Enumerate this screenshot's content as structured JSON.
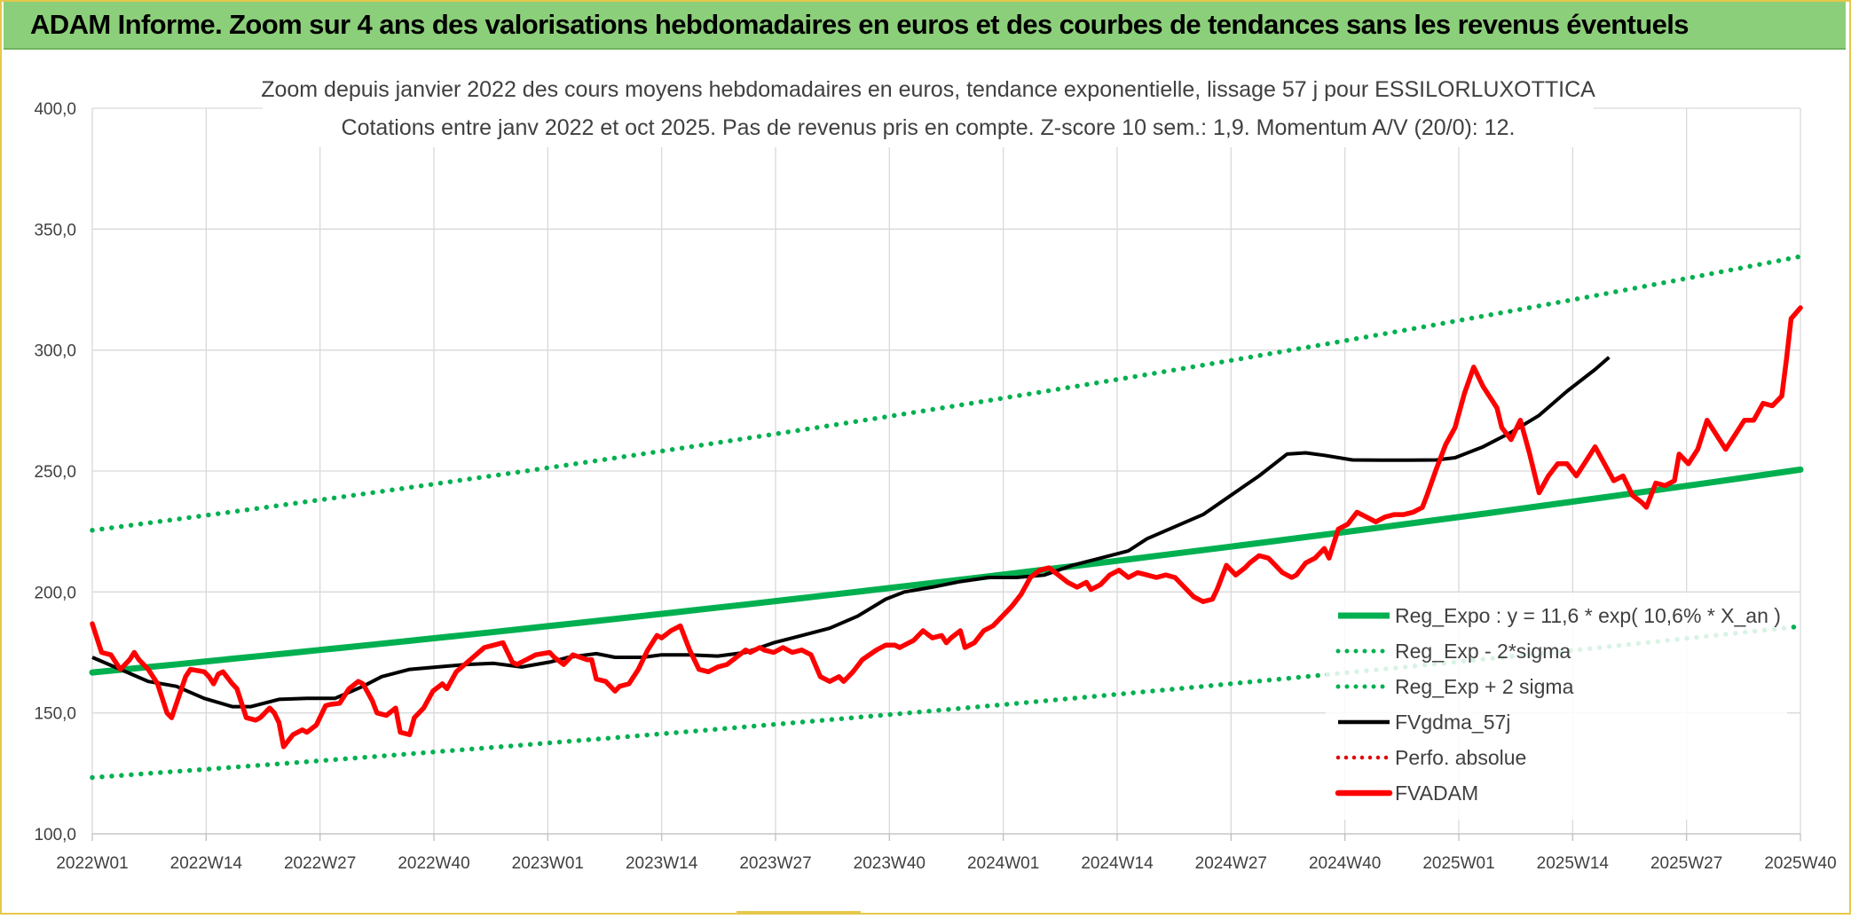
{
  "header": {
    "title": "ADAM Informe. Zoom sur 4 ans des valorisations hebdomadaires en euros et des courbes de tendances sans les revenus éventuels"
  },
  "colors": {
    "header_bg": "#8ccf7a",
    "reg_expo": "#00b050",
    "fvgdma": "#000000",
    "perfo": "#e00000",
    "fvadam": "#ff0000",
    "grid": "#d9d9d9"
  },
  "chart_data": {
    "type": "line",
    "title": "Zoom depuis janvier 2022 des cours moyens hebdomadaires en euros, tendance exponentielle, lissage 57 j pour ESSILORLUXOTTICA",
    "subtitle": "Cotations entre janv 2022 et oct 2025. Pas de revenus pris en compte. Z-score 10 sem.: 1,9. Momentum A/V (20/0): 12.",
    "ylim": [
      100,
      400
    ],
    "yticks": [
      "100,0",
      "150,0",
      "200,0",
      "250,0",
      "300,0",
      "350,0",
      "400,0"
    ],
    "ytick_values": [
      100,
      150,
      200,
      250,
      300,
      350,
      400
    ],
    "x_count": 198,
    "xticks": [
      "2022W01",
      "2022W14",
      "2022W27",
      "2022W40",
      "2023W01",
      "2023W14",
      "2023W27",
      "2023W40",
      "2024W01",
      "2024W14",
      "2024W27",
      "2024W40",
      "2025W01",
      "2025W14",
      "2025W27",
      "2025W40"
    ],
    "grid": true,
    "legend_position": "bottom-right",
    "series": [
      {
        "name": "Reg_Expo : y = 11,6 * exp( 10,6% *  X_an )",
        "style": "solid-thick",
        "color": "#00b050",
        "start": 166.7,
        "end": 250.6
      },
      {
        "name": "Reg_Exp - 2*sigma",
        "style": "dotted",
        "color": "#00b050",
        "start": 123.3,
        "end": 185.8
      },
      {
        "name": "Reg_Exp + 2 sigma",
        "style": "dotted",
        "color": "#00b050",
        "start": 225.5,
        "end": 338.7
      },
      {
        "name": "FVgdma_57j",
        "style": "solid",
        "color": "#000000",
        "points": [
          [
            0,
            173
          ],
          [
            6,
            168
          ],
          [
            12,
            163
          ],
          [
            18,
            161
          ],
          [
            24,
            156
          ],
          [
            30,
            152.6
          ],
          [
            34,
            152.6
          ],
          [
            40,
            155.6
          ],
          [
            46,
            156
          ],
          [
            52,
            156
          ],
          [
            58,
            161
          ],
          [
            62,
            165
          ],
          [
            68,
            168
          ],
          [
            74,
            169
          ],
          [
            80,
            170
          ],
          [
            86,
            170.5
          ],
          [
            92,
            169
          ],
          [
            98,
            171
          ],
          [
            102,
            173
          ],
          [
            108,
            174.5
          ],
          [
            112,
            173
          ],
          [
            118,
            173
          ],
          [
            122,
            174
          ],
          [
            128,
            174
          ],
          [
            134,
            173.5
          ],
          [
            140,
            175
          ],
          [
            146,
            179
          ],
          [
            152,
            182
          ],
          [
            158,
            185
          ],
          [
            164,
            190
          ],
          [
            170,
            197
          ],
          [
            174,
            200
          ],
          [
            180,
            202
          ],
          [
            186,
            204.3
          ],
          [
            192,
            206
          ],
          [
            198,
            206
          ],
          [
            204,
            207
          ],
          [
            210,
            211
          ],
          [
            216,
            214
          ],
          [
            222,
            217
          ],
          [
            226,
            222
          ],
          [
            232,
            227
          ],
          [
            238,
            232
          ],
          [
            244,
            240
          ],
          [
            250,
            248
          ],
          [
            256,
            257
          ],
          [
            260,
            257.5
          ],
          [
            264,
            256.5
          ],
          [
            270,
            254.6
          ],
          [
            276,
            254.5
          ],
          [
            282,
            254.5
          ],
          [
            288,
            254.6
          ],
          [
            292,
            255.5
          ],
          [
            298,
            260
          ],
          [
            304,
            266
          ],
          [
            310,
            273
          ],
          [
            316,
            283
          ],
          [
            322,
            292
          ],
          [
            325,
            297
          ]
        ]
      },
      {
        "name": "Perfo. absolue",
        "style": "dotted",
        "color": "#e00000"
      },
      {
        "name": "FVADAM",
        "style": "solid-thick",
        "color": "#ff0000",
        "points": [
          [
            0,
            186.9
          ],
          [
            2,
            175
          ],
          [
            4,
            174
          ],
          [
            6,
            168
          ],
          [
            8,
            172
          ],
          [
            9,
            175
          ],
          [
            10,
            172
          ],
          [
            12,
            168
          ],
          [
            14,
            162
          ],
          [
            16,
            150
          ],
          [
            17,
            148
          ],
          [
            20,
            165
          ],
          [
            21,
            168
          ],
          [
            24,
            167
          ],
          [
            25,
            165
          ],
          [
            26,
            162
          ],
          [
            27,
            166
          ],
          [
            28,
            167
          ],
          [
            30,
            162
          ],
          [
            31,
            160
          ],
          [
            33,
            148
          ],
          [
            35,
            147
          ],
          [
            36,
            148
          ],
          [
            38,
            152
          ],
          [
            39,
            150
          ],
          [
            40,
            146
          ],
          [
            41,
            136
          ],
          [
            43,
            141
          ],
          [
            45,
            143
          ],
          [
            46,
            142
          ],
          [
            48,
            145
          ],
          [
            50,
            153
          ],
          [
            51,
            153.5
          ],
          [
            53,
            154
          ],
          [
            55,
            160
          ],
          [
            57,
            163
          ],
          [
            58,
            162
          ],
          [
            60,
            155
          ],
          [
            61,
            150
          ],
          [
            63,
            149
          ],
          [
            65,
            152
          ],
          [
            66,
            142
          ],
          [
            68,
            141
          ],
          [
            69,
            148
          ],
          [
            71,
            152
          ],
          [
            73,
            159
          ],
          [
            75,
            162
          ],
          [
            76,
            160
          ],
          [
            78,
            167
          ],
          [
            81,
            172
          ],
          [
            84,
            177
          ],
          [
            86,
            178
          ],
          [
            88,
            179
          ],
          [
            90,
            171
          ],
          [
            91,
            170
          ],
          [
            93,
            172
          ],
          [
            95,
            174
          ],
          [
            98,
            175
          ],
          [
            99,
            173
          ],
          [
            101,
            170
          ],
          [
            103,
            174
          ],
          [
            106,
            172
          ],
          [
            107,
            172
          ],
          [
            108,
            164
          ],
          [
            110,
            163
          ],
          [
            112,
            159
          ],
          [
            113,
            161
          ],
          [
            115,
            162
          ],
          [
            117,
            168
          ],
          [
            119,
            176
          ],
          [
            121,
            182
          ],
          [
            122,
            181
          ],
          [
            124,
            184
          ],
          [
            126,
            186
          ],
          [
            128,
            176
          ],
          [
            130,
            168
          ],
          [
            132,
            167
          ],
          [
            134,
            169
          ],
          [
            136,
            170
          ],
          [
            138,
            173
          ],
          [
            140,
            176
          ],
          [
            141,
            175
          ],
          [
            143,
            177
          ],
          [
            144,
            176
          ],
          [
            146,
            175
          ],
          [
            148,
            177
          ],
          [
            150,
            175
          ],
          [
            152,
            176
          ],
          [
            154,
            174
          ],
          [
            156,
            165
          ],
          [
            158,
            163
          ],
          [
            160,
            165
          ],
          [
            161,
            163
          ],
          [
            163,
            167
          ],
          [
            165,
            172
          ],
          [
            168,
            176
          ],
          [
            170,
            178
          ],
          [
            172,
            178
          ],
          [
            173,
            177
          ],
          [
            175,
            179
          ],
          [
            176,
            180
          ],
          [
            178,
            184
          ],
          [
            180,
            181
          ],
          [
            182,
            182
          ],
          [
            183,
            179
          ],
          [
            184,
            181
          ],
          [
            186,
            184
          ],
          [
            187,
            177
          ],
          [
            189,
            179
          ],
          [
            191,
            184
          ],
          [
            193,
            186
          ],
          [
            195,
            190
          ],
          [
            197,
            194
          ],
          [
            199,
            199
          ],
          [
            201,
            206
          ],
          [
            203,
            209
          ],
          [
            205,
            210
          ],
          [
            207,
            207
          ],
          [
            209,
            204
          ],
          [
            211,
            202
          ],
          [
            213,
            204
          ],
          [
            214,
            201
          ],
          [
            216,
            203
          ],
          [
            218,
            207
          ],
          [
            220,
            209
          ],
          [
            222,
            206
          ],
          [
            224,
            208
          ],
          [
            226,
            207
          ],
          [
            228,
            206
          ],
          [
            230,
            207
          ],
          [
            232,
            206
          ],
          [
            234,
            202
          ],
          [
            236,
            198
          ],
          [
            238,
            196
          ],
          [
            240,
            197
          ],
          [
            241,
            201
          ],
          [
            243,
            211
          ],
          [
            245,
            207
          ],
          [
            247,
            210
          ],
          [
            248,
            212
          ],
          [
            250,
            215
          ],
          [
            252,
            214
          ],
          [
            253,
            212
          ],
          [
            255,
            208
          ],
          [
            257,
            206
          ],
          [
            258,
            207
          ],
          [
            260,
            212
          ],
          [
            262,
            214
          ],
          [
            264,
            218
          ],
          [
            265,
            214
          ],
          [
            267,
            226
          ],
          [
            269,
            228
          ],
          [
            271,
            233
          ],
          [
            273,
            231
          ],
          [
            275,
            229
          ],
          [
            277,
            231
          ],
          [
            279,
            232
          ],
          [
            281,
            232
          ],
          [
            283,
            233
          ],
          [
            285,
            235
          ],
          [
            286,
            240
          ],
          [
            288,
            251
          ],
          [
            290,
            261
          ],
          [
            292,
            268
          ],
          [
            294,
            282
          ],
          [
            296,
            293
          ],
          [
            298,
            285
          ],
          [
            300,
            279
          ],
          [
            301,
            276
          ],
          [
            302,
            268
          ],
          [
            304,
            263
          ],
          [
            306,
            271
          ],
          [
            308,
            257
          ],
          [
            310,
            241
          ],
          [
            312,
            248
          ],
          [
            314,
            253
          ],
          [
            316,
            253
          ],
          [
            318,
            248
          ],
          [
            320,
            254
          ],
          [
            322,
            260
          ],
          [
            324,
            253
          ],
          [
            326,
            246
          ],
          [
            328,
            248
          ],
          [
            330,
            240
          ],
          [
            332,
            237
          ],
          [
            333,
            235
          ],
          [
            335,
            245
          ],
          [
            337,
            244
          ],
          [
            339,
            246
          ],
          [
            340,
            257
          ],
          [
            342,
            253
          ],
          [
            344,
            259
          ],
          [
            346,
            271
          ],
          [
            348,
            265
          ],
          [
            350,
            259
          ],
          [
            352,
            265
          ],
          [
            354,
            271
          ],
          [
            356,
            271
          ],
          [
            358,
            278
          ],
          [
            360,
            277
          ],
          [
            362,
            281
          ],
          [
            363,
            296
          ],
          [
            364,
            313
          ],
          [
            366,
            317.5
          ]
        ]
      }
    ]
  }
}
